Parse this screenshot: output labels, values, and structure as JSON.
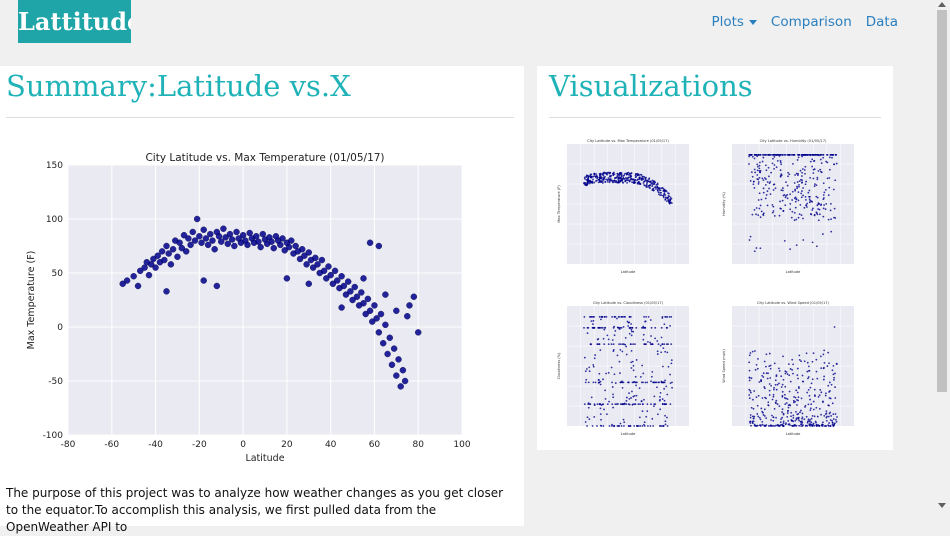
{
  "navbar": {
    "brand": "Lattitude",
    "links": [
      {
        "label": "Plots",
        "dropdown": true
      },
      {
        "label": "Comparison"
      },
      {
        "label": "Data"
      }
    ]
  },
  "summary": {
    "title": "Summary:Latitude vs.X",
    "paragraph": "The purpose of this project was to analyze how weather changes as you get closer to the equator.To accomplish this analysis, we first pulled data from the OpenWeather API to"
  },
  "visualizations": {
    "title": "Visualizations"
  },
  "colors": {
    "accent": "#1fb3b8",
    "brand_bg": "#1fa5a8",
    "link": "#2a7fc0",
    "marker": "#00008b"
  },
  "chart_data": [
    {
      "type": "scatter",
      "title": "City Latitude vs. Max Temperature (01/05/17)",
      "xlabel": "Latitude",
      "ylabel": "Max Temperature (F)",
      "xlim": [
        -80,
        100
      ],
      "ylim": [
        -100,
        150
      ],
      "xticks": [
        -80,
        -60,
        -40,
        -20,
        0,
        20,
        40,
        60,
        80,
        100
      ],
      "yticks": [
        -100,
        -50,
        0,
        50,
        100,
        150
      ],
      "grid": true,
      "points": [
        [
          -55,
          40
        ],
        [
          -53,
          43
        ],
        [
          -50,
          47
        ],
        [
          -48,
          38
        ],
        [
          -47,
          52
        ],
        [
          -45,
          55
        ],
        [
          -44,
          60
        ],
        [
          -43,
          48
        ],
        [
          -42,
          58
        ],
        [
          -41,
          63
        ],
        [
          -40,
          55
        ],
        [
          -39,
          66
        ],
        [
          -38,
          60
        ],
        [
          -37,
          70
        ],
        [
          -36,
          62
        ],
        [
          -35,
          75
        ],
        [
          -34,
          68
        ],
        [
          -33,
          58
        ],
        [
          -32,
          72
        ],
        [
          -31,
          80
        ],
        [
          -30,
          65
        ],
        [
          -29,
          78
        ],
        [
          -28,
          73
        ],
        [
          -27,
          85
        ],
        [
          -26,
          70
        ],
        [
          -25,
          82
        ],
        [
          -24,
          76
        ],
        [
          -23,
          88
        ],
        [
          -22,
          80
        ],
        [
          -21,
          100
        ],
        [
          -20,
          84
        ],
        [
          -19,
          78
        ],
        [
          -18,
          90
        ],
        [
          -17,
          82
        ],
        [
          -16,
          76
        ],
        [
          -15,
          86
        ],
        [
          -14,
          80
        ],
        [
          -13,
          72
        ],
        [
          -12,
          88
        ],
        [
          -11,
          84
        ],
        [
          -10,
          79
        ],
        [
          -9,
          91
        ],
        [
          -8,
          83
        ],
        [
          -7,
          77
        ],
        [
          -6,
          86
        ],
        [
          -5,
          81
        ],
        [
          -4,
          75
        ],
        [
          -3,
          88
        ],
        [
          -2,
          82
        ],
        [
          -1,
          78
        ],
        [
          0,
          85
        ],
        [
          1,
          80
        ],
        [
          2,
          76
        ],
        [
          3,
          87
        ],
        [
          4,
          82
        ],
        [
          5,
          78
        ],
        [
          6,
          84
        ],
        [
          7,
          79
        ],
        [
          8,
          74
        ],
        [
          9,
          86
        ],
        [
          10,
          81
        ],
        [
          11,
          77
        ],
        [
          12,
          83
        ],
        [
          13,
          79
        ],
        [
          14,
          73
        ],
        [
          15,
          84
        ],
        [
          16,
          80
        ],
        [
          17,
          76
        ],
        [
          18,
          82
        ],
        [
          19,
          71
        ],
        [
          20,
          78
        ],
        [
          21,
          74
        ],
        [
          22,
          80
        ],
        [
          23,
          68
        ],
        [
          24,
          75
        ],
        [
          25,
          70
        ],
        [
          26,
          63
        ],
        [
          27,
          72
        ],
        [
          28,
          66
        ],
        [
          29,
          58
        ],
        [
          30,
          69
        ],
        [
          31,
          62
        ],
        [
          32,
          55
        ],
        [
          33,
          64
        ],
        [
          34,
          58
        ],
        [
          35,
          50
        ],
        [
          36,
          62
        ],
        [
          37,
          52
        ],
        [
          38,
          45
        ],
        [
          39,
          56
        ],
        [
          40,
          48
        ],
        [
          41,
          40
        ],
        [
          42,
          52
        ],
        [
          43,
          43
        ],
        [
          44,
          36
        ],
        [
          45,
          47
        ],
        [
          46,
          38
        ],
        [
          47,
          30
        ],
        [
          48,
          42
        ],
        [
          49,
          33
        ],
        [
          50,
          25
        ],
        [
          51,
          37
        ],
        [
          52,
          28
        ],
        [
          53,
          20
        ],
        [
          54,
          32
        ],
        [
          55,
          22
        ],
        [
          56,
          12
        ],
        [
          57,
          26
        ],
        [
          58,
          15
        ],
        [
          59,
          5
        ],
        [
          60,
          20
        ],
        [
          61,
          8
        ],
        [
          62,
          -5
        ],
        [
          63,
          12
        ],
        [
          64,
          -15
        ],
        [
          65,
          2
        ],
        [
          66,
          -25
        ],
        [
          67,
          -10
        ],
        [
          68,
          -35
        ],
        [
          69,
          -20
        ],
        [
          70,
          -45
        ],
        [
          71,
          -30
        ],
        [
          72,
          -55
        ],
        [
          73,
          -40
        ],
        [
          74,
          -50
        ],
        [
          75,
          10
        ],
        [
          76,
          20
        ],
        [
          58,
          78
        ],
        [
          62,
          75
        ],
        [
          -35,
          33
        ],
        [
          -18,
          43
        ],
        [
          -12,
          38
        ],
        [
          20,
          45
        ],
        [
          30,
          40
        ],
        [
          45,
          18
        ],
        [
          55,
          45
        ],
        [
          65,
          30
        ],
        [
          70,
          15
        ],
        [
          78,
          28
        ],
        [
          80,
          -5
        ]
      ]
    }
  ],
  "thumbnails": [
    {
      "title": "City Latitude vs. Max Temperature (01/05/17)",
      "ylabel": "Max Temperature (F)",
      "xlabel": "Latitude"
    },
    {
      "title": "City Latitude vs. Humidity (01/05/17)",
      "ylabel": "Humidity (%)",
      "xlabel": "Latitude"
    },
    {
      "title": "City Latitude vs. Cloudiness (01/05/17)",
      "ylabel": "Cloudiness (%)",
      "xlabel": "Latitude"
    },
    {
      "title": "City Latitude vs. Wind Speed (01/05/17)",
      "ylabel": "Wind Speed (mph)",
      "xlabel": "Latitude"
    }
  ]
}
